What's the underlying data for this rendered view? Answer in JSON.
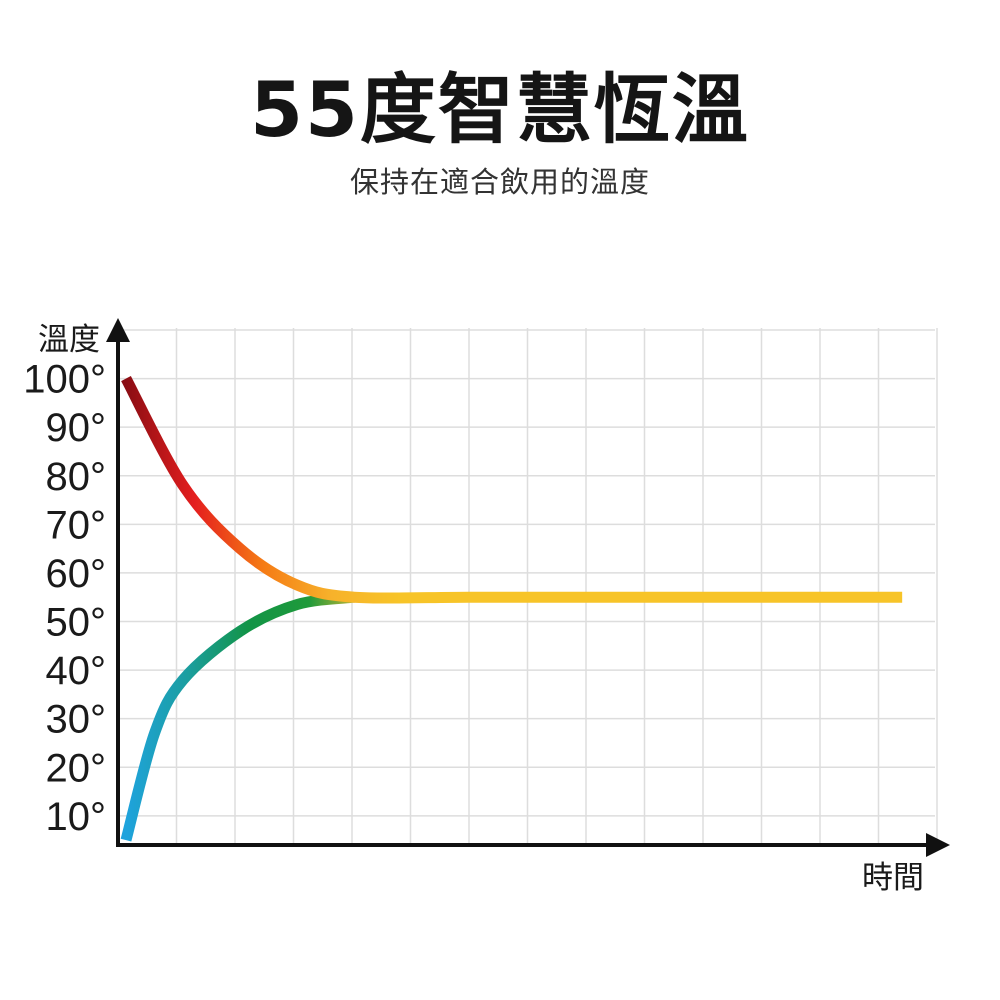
{
  "title": "55度智慧恆溫",
  "subtitle": "保持在適合飲用的溫度",
  "chart_data": {
    "type": "line",
    "ylabel": "溫度",
    "xlabel": "時間",
    "y_ticks": [
      "10°",
      "20°",
      "30°",
      "40°",
      "50°",
      "60°",
      "70°",
      "80°",
      "90°",
      "100°"
    ],
    "ylim": [
      4,
      110
    ],
    "xlim": [
      0,
      14
    ],
    "grid": true,
    "target_value": 55,
    "series": [
      {
        "points": [
          [
            0,
            100
          ],
          [
            1,
            78
          ],
          [
            2,
            65
          ],
          [
            3,
            57.5
          ],
          [
            4,
            55
          ],
          [
            6,
            55
          ],
          [
            8,
            55
          ],
          [
            10,
            55
          ],
          [
            12,
            55
          ],
          [
            13.6,
            55
          ]
        ],
        "colors": [
          "#8b0d14",
          "#e41e1e",
          "#f57b15",
          "#f7b22b",
          "#f7c428"
        ]
      },
      {
        "points": [
          [
            0,
            5
          ],
          [
            0.5,
            27
          ],
          [
            1,
            38
          ],
          [
            2,
            48
          ],
          [
            3,
            53.5
          ],
          [
            4,
            55
          ]
        ],
        "colors": [
          "#1fa3dd",
          "#1b9ea0",
          "#129447",
          "#1f9a3a",
          "#f5bc33"
        ]
      }
    ]
  }
}
